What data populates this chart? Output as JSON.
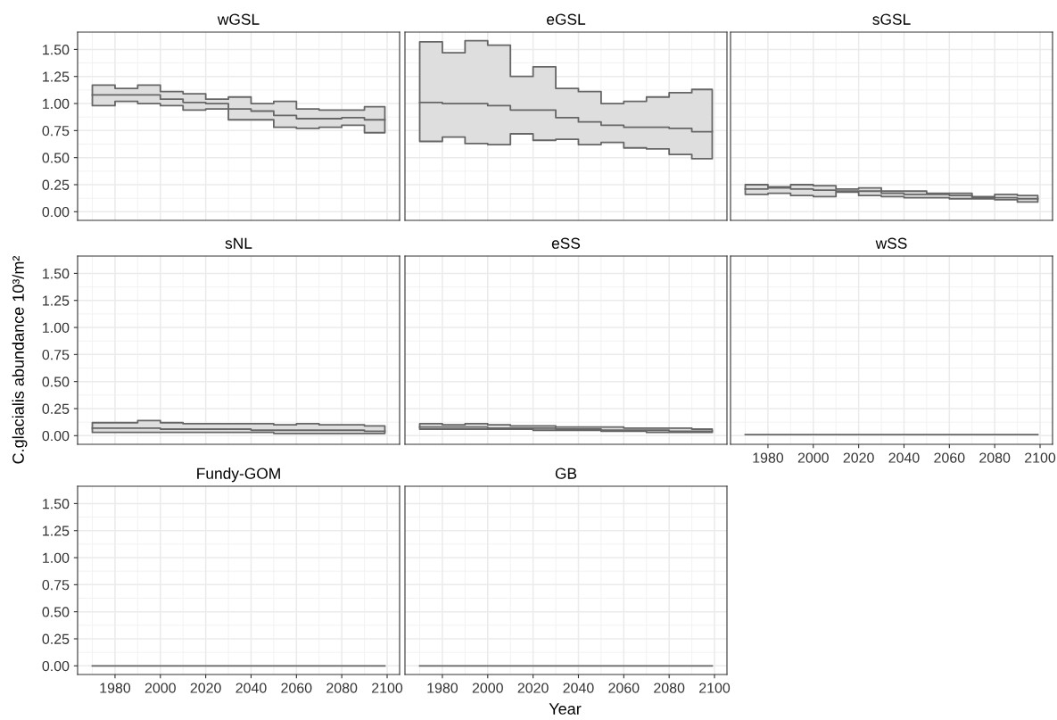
{
  "chart_data": [
    {
      "type": "step",
      "title": "wGSL",
      "x": [
        1970,
        1980,
        1990,
        2000,
        2010,
        2020,
        2030,
        2040,
        2050,
        2060,
        2070,
        2080,
        2090,
        2099
      ],
      "xlim": [
        1963.5,
        2105.5
      ],
      "ylim": [
        -0.08,
        1.66
      ],
      "xticks": [
        1980,
        2000,
        2020,
        2040,
        2060,
        2080,
        2100
      ],
      "yticks": [
        {
          "value": 0,
          "label": "0.00"
        },
        {
          "value": 0.25,
          "label": "0.25"
        },
        {
          "value": 0.5,
          "label": "0.50"
        },
        {
          "value": 0.75,
          "label": "0.75"
        },
        {
          "value": 1,
          "label": "1.00"
        },
        {
          "value": 1.25,
          "label": "1.25"
        },
        {
          "value": 1.5,
          "label": "1.50"
        }
      ],
      "grid": true,
      "tick_labels": "y",
      "series": [
        {
          "color": "#666666",
          "values": [
            1.08,
            1.08,
            1.08,
            1.04,
            1.01,
            1.0,
            0.95,
            0.93,
            0.89,
            0.86,
            0.86,
            0.87,
            0.85,
            0.85
          ],
          "upper": [
            1.17,
            1.14,
            1.17,
            1.11,
            1.09,
            1.04,
            1.06,
            1.0,
            1.02,
            0.95,
            0.94,
            0.94,
            0.97,
            0.97
          ],
          "lower": [
            0.98,
            1.02,
            1.0,
            0.98,
            0.94,
            0.95,
            0.85,
            0.85,
            0.78,
            0.77,
            0.78,
            0.8,
            0.73,
            0.73
          ]
        }
      ]
    },
    {
      "type": "step",
      "title": "eGSL",
      "x": [
        1970,
        1980,
        1990,
        2000,
        2010,
        2020,
        2030,
        2040,
        2050,
        2060,
        2070,
        2080,
        2090,
        2099
      ],
      "xlim": [
        1963.5,
        2105.5
      ],
      "ylim": [
        -0.08,
        1.66
      ],
      "xticks": [
        1980,
        2000,
        2020,
        2040,
        2060,
        2080,
        2100
      ],
      "yticks": [
        0,
        0.25,
        0.5,
        0.75,
        1,
        1.25,
        1.5
      ],
      "grid": true,
      "tick_labels": false,
      "series": [
        {
          "color": "#666666",
          "values": [
            1.01,
            1.0,
            1.0,
            0.98,
            0.94,
            0.94,
            0.87,
            0.83,
            0.8,
            0.78,
            0.78,
            0.77,
            0.74,
            0.74
          ],
          "upper": [
            1.57,
            1.47,
            1.58,
            1.54,
            1.25,
            1.34,
            1.14,
            1.11,
            1.0,
            1.02,
            1.06,
            1.1,
            1.13,
            1.13
          ],
          "lower": [
            0.65,
            0.69,
            0.63,
            0.62,
            0.72,
            0.66,
            0.67,
            0.62,
            0.64,
            0.59,
            0.58,
            0.53,
            0.49,
            0.49
          ]
        }
      ]
    },
    {
      "type": "step",
      "title": "sGSL",
      "x": [
        1970,
        1980,
        1990,
        2000,
        2010,
        2020,
        2030,
        2040,
        2050,
        2060,
        2070,
        2080,
        2090,
        2099
      ],
      "xlim": [
        1963.5,
        2105.5
      ],
      "ylim": [
        -0.08,
        1.66
      ],
      "xticks": [
        1980,
        2000,
        2020,
        2040,
        2060,
        2080,
        2100
      ],
      "yticks": [
        0,
        0.25,
        0.5,
        0.75,
        1,
        1.25,
        1.5
      ],
      "grid": true,
      "tick_labels": false,
      "series": [
        {
          "color": "#666666",
          "values": [
            0.21,
            0.22,
            0.21,
            0.2,
            0.19,
            0.19,
            0.17,
            0.16,
            0.16,
            0.15,
            0.13,
            0.13,
            0.12,
            0.12
          ],
          "upper": [
            0.25,
            0.23,
            0.25,
            0.24,
            0.21,
            0.22,
            0.19,
            0.19,
            0.17,
            0.17,
            0.14,
            0.16,
            0.15,
            0.15
          ],
          "lower": [
            0.16,
            0.17,
            0.15,
            0.14,
            0.18,
            0.15,
            0.14,
            0.13,
            0.13,
            0.12,
            0.12,
            0.11,
            0.09,
            0.09
          ]
        }
      ]
    },
    {
      "type": "step",
      "title": "sNL",
      "ylabel": "C.glacialis abundance 10³/m²",
      "x": [
        1970,
        1980,
        1990,
        2000,
        2010,
        2020,
        2030,
        2040,
        2050,
        2060,
        2070,
        2080,
        2090,
        2099
      ],
      "xlim": [
        1963.5,
        2105.5
      ],
      "ylim": [
        -0.08,
        1.66
      ],
      "xticks": [
        1980,
        2000,
        2020,
        2040,
        2060,
        2080,
        2100
      ],
      "yticks": [
        {
          "value": 0,
          "label": "0.00"
        },
        {
          "value": 0.25,
          "label": "0.25"
        },
        {
          "value": 0.5,
          "label": "0.50"
        },
        {
          "value": 0.75,
          "label": "0.75"
        },
        {
          "value": 1,
          "label": "1.00"
        },
        {
          "value": 1.25,
          "label": "1.25"
        },
        {
          "value": 1.5,
          "label": "1.50"
        }
      ],
      "grid": true,
      "tick_labels": "y",
      "series": [
        {
          "color": "#666666",
          "values": [
            0.07,
            0.07,
            0.07,
            0.06,
            0.06,
            0.06,
            0.06,
            0.05,
            0.05,
            0.05,
            0.05,
            0.05,
            0.04,
            0.04
          ],
          "upper": [
            0.12,
            0.12,
            0.14,
            0.12,
            0.11,
            0.11,
            0.11,
            0.11,
            0.1,
            0.11,
            0.1,
            0.1,
            0.09,
            0.09
          ],
          "lower": [
            0.03,
            0.03,
            0.03,
            0.03,
            0.03,
            0.03,
            0.03,
            0.03,
            0.02,
            0.02,
            0.02,
            0.02,
            0.02,
            0.02
          ]
        }
      ]
    },
    {
      "type": "step",
      "title": "eSS",
      "x": [
        1970,
        1980,
        1990,
        2000,
        2010,
        2020,
        2030,
        2040,
        2050,
        2060,
        2070,
        2080,
        2090,
        2099
      ],
      "xlim": [
        1963.5,
        2105.5
      ],
      "ylim": [
        -0.08,
        1.66
      ],
      "xticks": [
        1980,
        2000,
        2020,
        2040,
        2060,
        2080,
        2100
      ],
      "yticks": [
        0,
        0.25,
        0.5,
        0.75,
        1,
        1.25,
        1.5
      ],
      "grid": true,
      "tick_labels": false,
      "series": [
        {
          "color": "#666666",
          "values": [
            0.08,
            0.08,
            0.08,
            0.07,
            0.07,
            0.07,
            0.06,
            0.06,
            0.05,
            0.05,
            0.05,
            0.04,
            0.04,
            0.04
          ],
          "upper": [
            0.11,
            0.1,
            0.11,
            0.1,
            0.09,
            0.09,
            0.08,
            0.08,
            0.08,
            0.07,
            0.07,
            0.07,
            0.06,
            0.06
          ],
          "lower": [
            0.06,
            0.06,
            0.06,
            0.06,
            0.06,
            0.05,
            0.05,
            0.05,
            0.04,
            0.04,
            0.03,
            0.03,
            0.03,
            0.03
          ]
        }
      ]
    },
    {
      "type": "step",
      "title": "wSS",
      "x": [
        1970,
        1980,
        1990,
        2000,
        2010,
        2020,
        2030,
        2040,
        2050,
        2060,
        2070,
        2080,
        2090,
        2099
      ],
      "xlim": [
        1963.5,
        2105.5
      ],
      "ylim": [
        -0.08,
        1.66
      ],
      "xticks": [
        1980,
        2000,
        2020,
        2040,
        2060,
        2080,
        2100
      ],
      "yticks": [
        0,
        0.25,
        0.5,
        0.75,
        1,
        1.25,
        1.5
      ],
      "grid": true,
      "tick_labels": "x",
      "series": [
        {
          "color": "#666666",
          "values": [
            0.01,
            0.01,
            0.01,
            0.01,
            0.01,
            0.01,
            0.01,
            0.01,
            0.01,
            0.01,
            0.01,
            0.01,
            0.01,
            0.01
          ]
        }
      ]
    },
    {
      "type": "step",
      "title": "Fundy-GOM",
      "x": [
        1970,
        1980,
        1990,
        2000,
        2010,
        2020,
        2030,
        2040,
        2050,
        2060,
        2070,
        2080,
        2090,
        2099
      ],
      "xlim": [
        1963.5,
        2105.5
      ],
      "ylim": [
        -0.08,
        1.66
      ],
      "xticks": [
        1980,
        2000,
        2020,
        2040,
        2060,
        2080,
        2100
      ],
      "yticks": [
        {
          "value": 0,
          "label": "0.00"
        },
        {
          "value": 0.25,
          "label": "0.25"
        },
        {
          "value": 0.5,
          "label": "0.50"
        },
        {
          "value": 0.75,
          "label": "0.75"
        },
        {
          "value": 1,
          "label": "1.00"
        },
        {
          "value": 1.25,
          "label": "1.25"
        },
        {
          "value": 1.5,
          "label": "1.50"
        }
      ],
      "grid": true,
      "series": [
        {
          "color": "#666666",
          "values": [
            0,
            0,
            0,
            0,
            0,
            0,
            0,
            0,
            0,
            0,
            0,
            0,
            0,
            0
          ]
        }
      ]
    },
    {
      "type": "step",
      "title": "GB",
      "xlabel": "Year",
      "x": [
        1970,
        1980,
        1990,
        2000,
        2010,
        2020,
        2030,
        2040,
        2050,
        2060,
        2070,
        2080,
        2090,
        2099
      ],
      "xlim": [
        1963.5,
        2105.5
      ],
      "ylim": [
        -0.08,
        1.66
      ],
      "xticks": [
        1980,
        2000,
        2020,
        2040,
        2060,
        2080,
        2100
      ],
      "yticks": [
        0,
        0.25,
        0.5,
        0.75,
        1,
        1.25,
        1.5
      ],
      "grid": true,
      "tick_labels": "x",
      "series": [
        {
          "color": "#666666",
          "values": [
            0,
            0,
            0,
            0,
            0,
            0,
            0,
            0,
            0,
            0,
            0,
            0,
            0,
            0
          ]
        }
      ]
    }
  ]
}
